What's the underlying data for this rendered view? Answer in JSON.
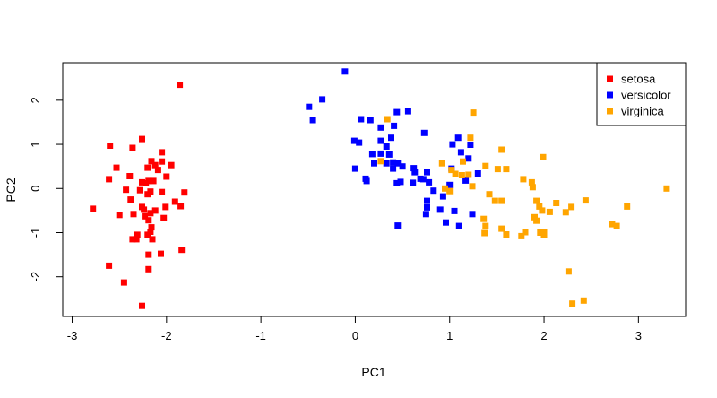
{
  "chart_data": {
    "type": "scatter",
    "title": "",
    "xlabel": "PC1",
    "ylabel": "PC2",
    "xlim": [
      -3.1,
      3.5
    ],
    "ylim": [
      -2.9,
      2.85
    ],
    "x_ticks": [
      -3,
      -2,
      -1,
      0,
      1,
      2,
      3
    ],
    "y_ticks": [
      -2,
      -1,
      0,
      1,
      2
    ],
    "grid": false,
    "legend_position": "top-right",
    "series": [
      {
        "name": "setosa",
        "color": "#ff0000",
        "marker": "square",
        "points": [
          [
            -1.86,
            2.35
          ],
          [
            -2.6,
            0.97
          ],
          [
            -2.36,
            0.92
          ],
          [
            -2.26,
            1.12
          ],
          [
            -2.05,
            0.82
          ],
          [
            -2.05,
            0.61
          ],
          [
            -2.16,
            0.62
          ],
          [
            -2.12,
            0.53
          ],
          [
            -2.2,
            0.47
          ],
          [
            -1.95,
            0.53
          ],
          [
            -2.09,
            0.42
          ],
          [
            -2.53,
            0.47
          ],
          [
            -2.61,
            0.21
          ],
          [
            -2.39,
            0.28
          ],
          [
            -2.19,
            0.17
          ],
          [
            -2.26,
            0.14
          ],
          [
            -2.14,
            0.17
          ],
          [
            -2.22,
            0.12
          ],
          [
            -2.0,
            0.27
          ],
          [
            -2.43,
            -0.03
          ],
          [
            -2.28,
            -0.04
          ],
          [
            -1.81,
            -0.09
          ],
          [
            -2.05,
            -0.08
          ],
          [
            -2.17,
            -0.07
          ],
          [
            -2.2,
            -0.13
          ],
          [
            -2.38,
            -0.25
          ],
          [
            -1.91,
            -0.3
          ],
          [
            -2.01,
            -0.42
          ],
          [
            -1.85,
            -0.4
          ],
          [
            -2.26,
            -0.42
          ],
          [
            -2.24,
            -0.48
          ],
          [
            -2.78,
            -0.46
          ],
          [
            -2.5,
            -0.6
          ],
          [
            -2.35,
            -0.58
          ],
          [
            -2.23,
            -0.63
          ],
          [
            -2.17,
            -0.56
          ],
          [
            -2.12,
            -0.5
          ],
          [
            -2.03,
            -0.67
          ],
          [
            -2.19,
            -0.72
          ],
          [
            -2.16,
            -0.88
          ],
          [
            -2.17,
            -0.98
          ],
          [
            -2.2,
            -1.05
          ],
          [
            -2.31,
            -1.05
          ],
          [
            -2.36,
            -1.15
          ],
          [
            -2.32,
            -1.15
          ],
          [
            -2.15,
            -1.15
          ],
          [
            -1.84,
            -1.39
          ],
          [
            -2.06,
            -1.48
          ],
          [
            -2.19,
            -1.5
          ],
          [
            -2.61,
            -1.75
          ],
          [
            -2.19,
            -1.83
          ],
          [
            -2.45,
            -2.13
          ],
          [
            -2.26,
            -2.66
          ]
        ]
      },
      {
        "name": "versicolor",
        "color": "#0000ff",
        "marker": "square",
        "points": [
          [
            -0.11,
            2.65
          ],
          [
            -0.35,
            2.02
          ],
          [
            -0.49,
            1.85
          ],
          [
            -0.45,
            1.55
          ],
          [
            0.06,
            1.57
          ],
          [
            0.16,
            1.55
          ],
          [
            0.44,
            1.73
          ],
          [
            0.56,
            1.75
          ],
          [
            0.27,
            1.38
          ],
          [
            0.41,
            1.42
          ],
          [
            0.73,
            1.26
          ],
          [
            0.38,
            1.15
          ],
          [
            0.27,
            1.08
          ],
          [
            -0.01,
            1.08
          ],
          [
            0.04,
            1.04
          ],
          [
            0.33,
            0.95
          ],
          [
            0.36,
            0.77
          ],
          [
            0.27,
            0.79
          ],
          [
            0.18,
            0.78
          ],
          [
            0.2,
            0.57
          ],
          [
            0.33,
            0.57
          ],
          [
            0.4,
            0.59
          ],
          [
            0.45,
            0.57
          ],
          [
            0.4,
            0.45
          ],
          [
            0.5,
            0.5
          ],
          [
            0.62,
            0.46
          ],
          [
            0.63,
            0.37
          ],
          [
            0.76,
            0.37
          ],
          [
            0.69,
            0.22
          ],
          [
            0.72,
            0.21
          ],
          [
            0.78,
            0.14
          ],
          [
            0.61,
            0.13
          ],
          [
            0.48,
            0.15
          ],
          [
            0.0,
            0.45
          ],
          [
            0.11,
            0.22
          ],
          [
            0.12,
            0.17
          ],
          [
            0.44,
            0.12
          ],
          [
            1.09,
            1.15
          ],
          [
            1.03,
            1.0
          ],
          [
            1.22,
            0.99
          ],
          [
            1.12,
            0.82
          ],
          [
            1.2,
            0.68
          ],
          [
            1.02,
            0.45
          ],
          [
            1.3,
            0.34
          ],
          [
            1.17,
            0.18
          ],
          [
            1.0,
            0.08
          ],
          [
            0.83,
            -0.05
          ],
          [
            0.93,
            -0.18
          ],
          [
            0.76,
            -0.28
          ],
          [
            0.76,
            -0.43
          ],
          [
            0.9,
            -0.48
          ],
          [
            1.05,
            -0.51
          ],
          [
            1.24,
            -0.58
          ],
          [
            0.75,
            -0.58
          ],
          [
            0.96,
            -0.77
          ],
          [
            0.45,
            -0.84
          ],
          [
            1.1,
            -0.85
          ]
        ]
      },
      {
        "name": "virginica",
        "color": "#ffa500",
        "marker": "square",
        "points": [
          [
            0.34,
            1.57
          ],
          [
            1.25,
            1.72
          ],
          [
            1.22,
            1.15
          ],
          [
            0.27,
            0.62
          ],
          [
            1.55,
            0.88
          ],
          [
            1.99,
            0.71
          ],
          [
            1.38,
            0.51
          ],
          [
            1.51,
            0.44
          ],
          [
            1.6,
            0.44
          ],
          [
            1.14,
            0.61
          ],
          [
            1.02,
            0.42
          ],
          [
            0.92,
            0.57
          ],
          [
            1.06,
            0.33
          ],
          [
            1.2,
            0.31
          ],
          [
            1.13,
            0.3
          ],
          [
            1.24,
            0.05
          ],
          [
            1.78,
            0.21
          ],
          [
            1.87,
            0.14
          ],
          [
            1.88,
            0.03
          ],
          [
            1.42,
            -0.13
          ],
          [
            0.95,
            0.0
          ],
          [
            1.0,
            -0.06
          ],
          [
            1.48,
            -0.28
          ],
          [
            1.55,
            -0.28
          ],
          [
            1.92,
            -0.28
          ],
          [
            1.95,
            -0.41
          ],
          [
            1.98,
            -0.5
          ],
          [
            1.9,
            -0.65
          ],
          [
            1.92,
            -0.73
          ],
          [
            1.36,
            -0.69
          ],
          [
            1.38,
            -0.85
          ],
          [
            1.55,
            -0.91
          ],
          [
            1.6,
            -1.04
          ],
          [
            1.8,
            -0.99
          ],
          [
            1.96,
            -1.0
          ],
          [
            2.0,
            -0.99
          ],
          [
            2.0,
            -1.06
          ],
          [
            1.76,
            -1.08
          ],
          [
            1.37,
            -1.01
          ],
          [
            2.23,
            -0.54
          ],
          [
            2.29,
            -0.42
          ],
          [
            2.44,
            -0.27
          ],
          [
            2.72,
            -0.81
          ],
          [
            2.77,
            -0.85
          ],
          [
            2.88,
            -0.41
          ],
          [
            3.3,
            0.0
          ],
          [
            2.06,
            -0.53
          ],
          [
            2.26,
            -1.88
          ],
          [
            2.3,
            -2.61
          ],
          [
            2.42,
            -2.54
          ],
          [
            2.13,
            -0.33
          ]
        ]
      }
    ]
  }
}
